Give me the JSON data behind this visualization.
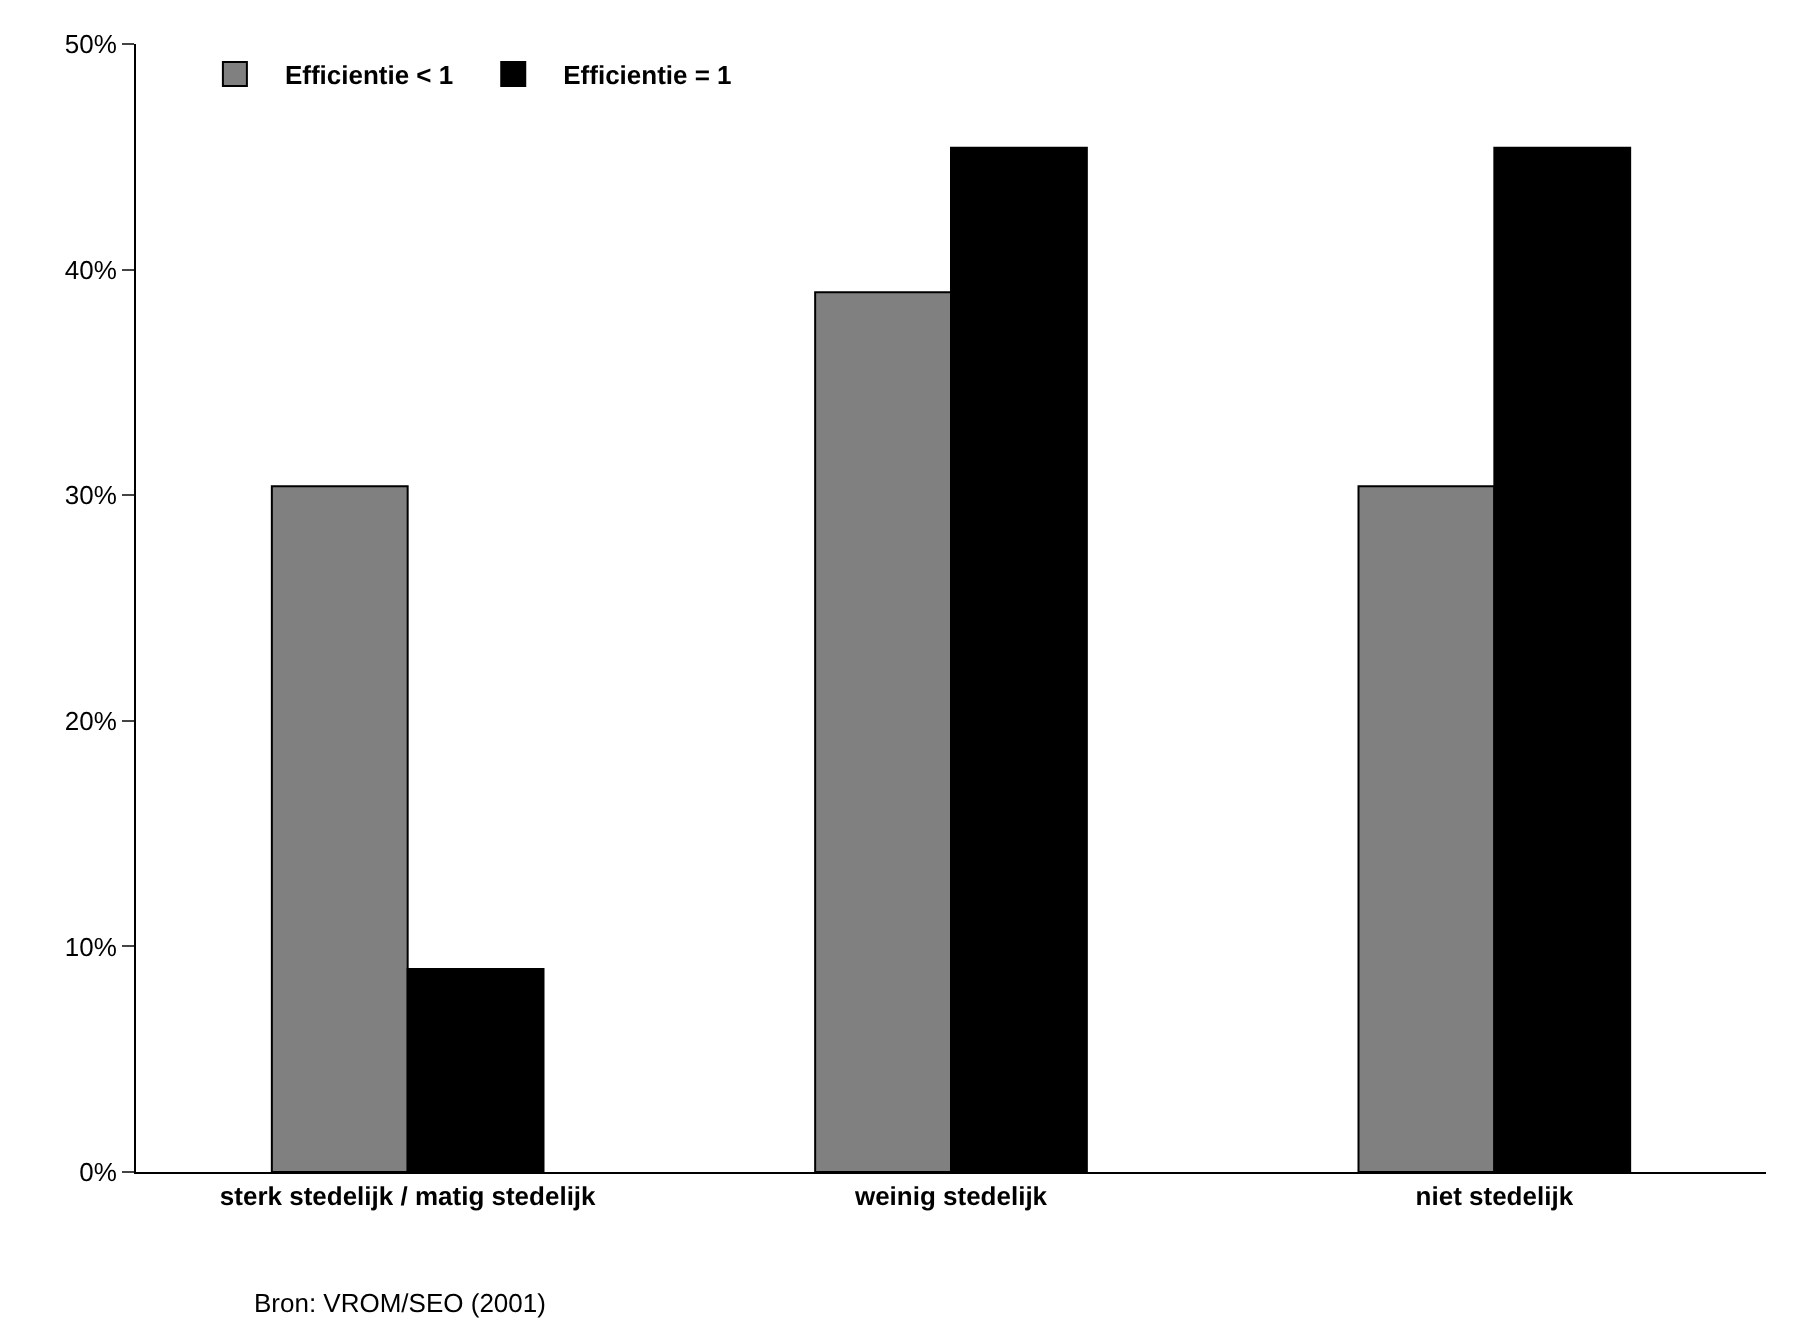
{
  "chart_data": {
    "type": "bar",
    "categories": [
      "sterk stedelijk / matig stedelijk",
      "weinig stedelijk",
      "niet stedelijk"
    ],
    "series": [
      {
        "name": "Efficientie < 1",
        "color": "#808080",
        "values": [
          30.4,
          39.0,
          30.4
        ]
      },
      {
        "name": "Efficientie = 1",
        "color": "#000000",
        "values": [
          9.0,
          45.4,
          45.4
        ]
      }
    ],
    "ylim": [
      0,
      50
    ],
    "yticks": [
      {
        "value": 0,
        "label": "0%"
      },
      {
        "value": 10,
        "label": "10%"
      },
      {
        "value": 20,
        "label": "20%"
      },
      {
        "value": 30,
        "label": "30%"
      },
      {
        "value": 40,
        "label": "40%"
      },
      {
        "value": 50,
        "label": "50%"
      }
    ],
    "legend": "top left",
    "annotations": [
      "Bron: VROM/SEO (2001)"
    ]
  }
}
